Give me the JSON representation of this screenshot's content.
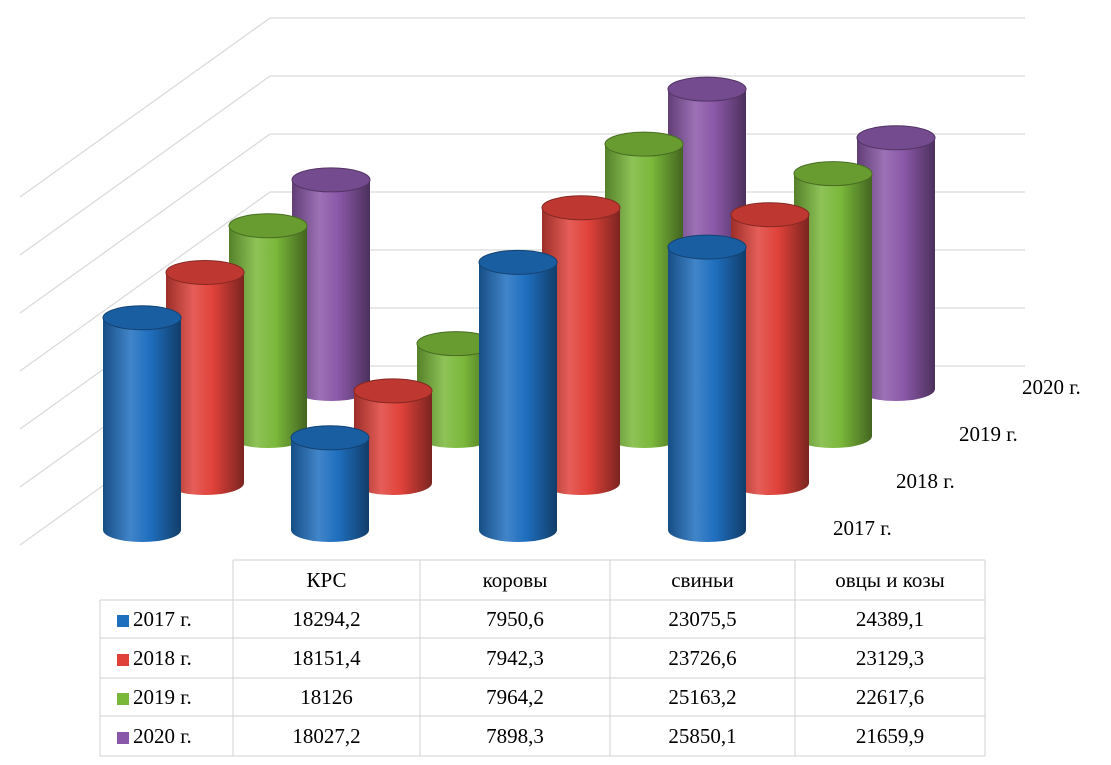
{
  "chart_data": {
    "type": "bar3d",
    "categories": [
      "КРС",
      "коровы",
      "свиньи",
      "овцы и козы"
    ],
    "series": [
      {
        "name": "2017 г.",
        "color": "#1f6fbf",
        "values": [
          18294.2,
          7950.6,
          23075.5,
          24389.1
        ],
        "value_labels": [
          "18294,2",
          "7950,6",
          "23075,5",
          "24389,1"
        ]
      },
      {
        "name": "2018 г.",
        "color": "#e0423a",
        "values": [
          18151.4,
          7942.3,
          23726.6,
          23129.3
        ],
        "value_labels": [
          "18151,4",
          "7942,3",
          "23726,6",
          "23129,3"
        ]
      },
      {
        "name": "2019 г.",
        "color": "#7ab83a",
        "values": [
          18126,
          7964.2,
          25163.2,
          22617.6
        ],
        "value_labels": [
          "18126",
          "7964,2",
          "25163,2",
          "22617,6"
        ]
      },
      {
        "name": "2020 г.",
        "color": "#8a58a8",
        "values": [
          18027.2,
          7898.3,
          25850.1,
          21659.9
        ],
        "value_labels": [
          "18027,2",
          "7898,3",
          "25850,1",
          "21659,9"
        ]
      }
    ],
    "ylim": [
      0,
      30000
    ],
    "yticks": [
      0,
      5000,
      10000,
      15000,
      20000,
      25000,
      30000
    ],
    "grid": true
  }
}
